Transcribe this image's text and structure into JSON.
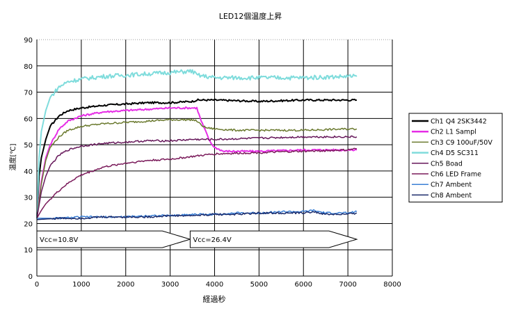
{
  "chart_data": {
    "type": "line",
    "title": "LED12個温度上昇",
    "xlabel": "経過秒",
    "ylabel": "温度[℃]",
    "xlim": [
      0,
      8000
    ],
    "ylim": [
      0,
      90
    ],
    "xticks": [
      "0",
      "1000",
      "2000",
      "3000",
      "4000",
      "5000",
      "6000",
      "7000",
      "8000"
    ],
    "yticks": [
      "0",
      "10",
      "20",
      "30",
      "40",
      "50",
      "60",
      "70",
      "80",
      "90"
    ],
    "grid": true,
    "legend_position": "right",
    "annotations": [
      {
        "text": "Vcc=10.8V",
        "x_start": 0,
        "x_end": 3450,
        "y": 14
      },
      {
        "text": "Vcc=26.4V",
        "x_start": 3450,
        "x_end": 7200,
        "y": 14
      }
    ],
    "series": [
      {
        "name": "Ch1 Q4 2SK3442",
        "color": "#000000",
        "x": [
          0,
          50,
          100,
          200,
          300,
          500,
          700,
          1000,
          1500,
          2000,
          2500,
          3000,
          3500,
          3600,
          4000,
          5000,
          6000,
          7000,
          7200
        ],
        "y": [
          22,
          38,
          45,
          52,
          57,
          61,
          63,
          64,
          65,
          65.5,
          66,
          66,
          66.5,
          67,
          67,
          66.5,
          67,
          67,
          67
        ]
      },
      {
        "name": "Ch2 L1 Sampl",
        "color": "#e62ee6",
        "x": [
          0,
          100,
          200,
          300,
          500,
          700,
          1000,
          1500,
          2000,
          2500,
          3000,
          3500,
          3600,
          3700,
          3800,
          3900,
          4000,
          4200,
          4500,
          5000,
          6000,
          7000,
          7200
        ],
        "y": [
          22,
          36,
          45,
          50,
          56,
          59,
          61,
          62.5,
          63,
          63.5,
          64,
          64,
          64,
          59,
          55,
          51,
          49,
          47.5,
          47.5,
          47.5,
          48,
          48,
          48
        ]
      },
      {
        "name": "Ch3 C9 100uF/50V",
        "color": "#6b7a2f",
        "x": [
          0,
          100,
          200,
          300,
          500,
          700,
          1000,
          1500,
          2000,
          2500,
          3000,
          3500,
          3600,
          3700,
          3800,
          4000,
          4500,
          5000,
          6000,
          7000,
          7200
        ],
        "y": [
          22,
          35,
          44,
          49,
          53,
          55.5,
          57,
          58,
          58.5,
          59,
          59.5,
          59.5,
          59,
          57.5,
          56.5,
          56,
          55.5,
          55.5,
          55.5,
          56,
          56
        ]
      },
      {
        "name": "Ch4 D5 SC311",
        "color": "#7fdcdc",
        "x": [
          0,
          50,
          100,
          200,
          300,
          500,
          700,
          1000,
          1500,
          2000,
          2500,
          3000,
          3500,
          3600,
          3800,
          4000,
          5000,
          6000,
          7000,
          7200
        ],
        "y": [
          22,
          45,
          55,
          63,
          68,
          72,
          74,
          75,
          76,
          76.5,
          77,
          77.5,
          78,
          76.5,
          76,
          75.5,
          75.5,
          75.5,
          76,
          76
        ]
      },
      {
        "name": "Ch5 Boad",
        "color": "#66175a",
        "x": [
          0,
          100,
          200,
          300,
          500,
          700,
          1000,
          1500,
          2000,
          2500,
          3000,
          3500,
          3600,
          4000,
          5000,
          6000,
          7000,
          7200
        ],
        "y": [
          22,
          32,
          38,
          42,
          46,
          48,
          49.5,
          50.5,
          51,
          51.5,
          51.5,
          52,
          52,
          52,
          52.5,
          53,
          53,
          53
        ]
      },
      {
        "name": "Ch6 LED Frame",
        "color": "#7a1a5a",
        "x": [
          0,
          100,
          200,
          400,
          600,
          800,
          1000,
          1500,
          2000,
          2500,
          3000,
          3500,
          4000,
          5000,
          6000,
          7000,
          7200
        ],
        "y": [
          22,
          25,
          27.5,
          31,
          34,
          36.5,
          38.5,
          41.5,
          43,
          44,
          44.5,
          45.5,
          46.5,
          47,
          47.5,
          48,
          48.5
        ]
      },
      {
        "name": "Ch7 Ambent",
        "color": "#3a7fd5",
        "x": [
          0,
          500,
          1000,
          1500,
          2000,
          2500,
          3000,
          3500,
          4000,
          4500,
          5000,
          5500,
          6000,
          6200,
          6500,
          7000,
          7200
        ],
        "y": [
          22,
          22,
          22.5,
          22.5,
          22.5,
          23,
          23,
          23.5,
          23.5,
          24,
          24,
          24.5,
          24.5,
          25,
          24,
          24,
          24.5
        ]
      },
      {
        "name": "Ch8 Ambent",
        "color": "#1a2a6a",
        "x": [
          0,
          500,
          1000,
          1500,
          2000,
          2500,
          3000,
          3500,
          4000,
          4500,
          5000,
          5500,
          6000,
          6200,
          6500,
          7000,
          7200
        ],
        "y": [
          21.5,
          22,
          22,
          22.5,
          22.5,
          22.5,
          23,
          23,
          23.5,
          23.5,
          24,
          24,
          24,
          24.5,
          23.5,
          23.5,
          24
        ]
      }
    ]
  }
}
